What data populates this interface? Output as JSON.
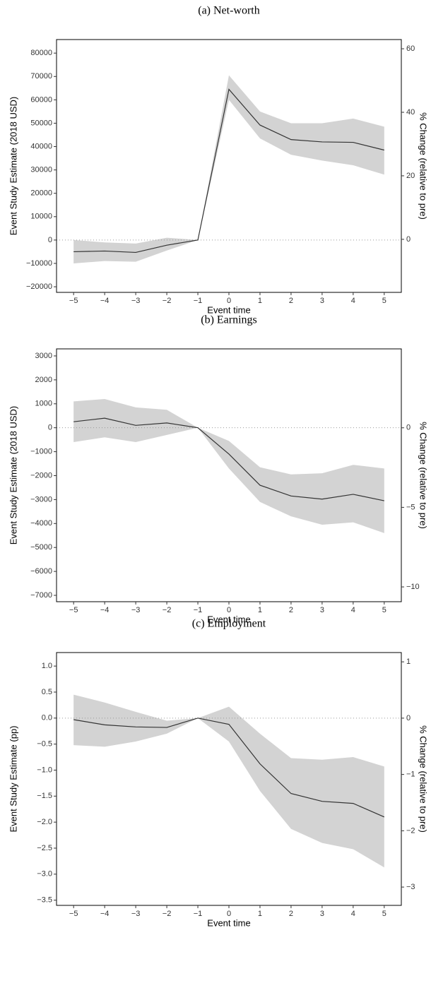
{
  "chart_data": [
    {
      "type": "line",
      "title": "(a) Net-worth",
      "xlabel": "Event time",
      "ylabel": "Event Study Estimate (2018 USD)",
      "y2label": "% Change (relative to pre)",
      "x": [
        -5,
        -4,
        -3,
        -2,
        -1,
        0,
        1,
        2,
        3,
        4,
        5
      ],
      "values": [
        -5000,
        -4700,
        -5300,
        -2200,
        0,
        64500,
        49200,
        43000,
        42000,
        41800,
        38500
      ],
      "lower": [
        -10000,
        -9000,
        -9300,
        -4500,
        0,
        60000,
        43500,
        36500,
        34000,
        32000,
        28000
      ],
      "upper": [
        0,
        -1000,
        -1500,
        1000,
        0,
        70500,
        55000,
        50000,
        50000,
        52000,
        48500
      ],
      "color": "#333333",
      "band_color": "#d3d3d3",
      "hline": 0,
      "xlim": [
        -5.55,
        5.55
      ],
      "ylim": [
        -22400,
        85800
      ],
      "y2lim": [
        -16.7,
        62.9
      ],
      "xticks": [
        {
          "value": -5,
          "label": "−5"
        },
        {
          "value": -4,
          "label": "−4"
        },
        {
          "value": -3,
          "label": "−3"
        },
        {
          "value": -2,
          "label": "−2"
        },
        {
          "value": -1,
          "label": "−1"
        },
        0,
        1,
        2,
        3,
        4,
        5
      ],
      "yticks": [
        {
          "value": -20000,
          "label": "−20000"
        },
        {
          "value": -10000,
          "label": "−10000"
        },
        0,
        10000,
        20000,
        30000,
        40000,
        50000,
        60000,
        70000,
        80000
      ],
      "y2ticks": [
        0,
        20,
        40,
        60
      ]
    },
    {
      "type": "line",
      "title": "(b) Earnings",
      "xlabel": "Event time",
      "ylabel": "Event Study Estimate (2018 USD)",
      "y2label": "% Change (relative to pre)",
      "x": [
        -5,
        -4,
        -3,
        -2,
        -1,
        0,
        1,
        2,
        3,
        4,
        5
      ],
      "values": [
        250,
        400,
        100,
        200,
        0,
        -1100,
        -2400,
        -2850,
        -2980,
        -2780,
        -3050
      ],
      "lower": [
        -600,
        -400,
        -600,
        -300,
        0,
        -1700,
        -3100,
        -3700,
        -4050,
        -3950,
        -4400
      ],
      "upper": [
        1100,
        1200,
        850,
        750,
        0,
        -550,
        -1650,
        -1950,
        -1900,
        -1550,
        -1700
      ],
      "color": "#333333",
      "band_color": "#d3d3d3",
      "hline": 0,
      "xlim": [
        -5.55,
        5.55
      ],
      "ylim": [
        -7265,
        3294
      ],
      "y2lim": [
        -10.93,
        4.96
      ],
      "xticks": [
        {
          "value": -5,
          "label": "−5"
        },
        {
          "value": -4,
          "label": "−4"
        },
        {
          "value": -3,
          "label": "−3"
        },
        {
          "value": -2,
          "label": "−2"
        },
        {
          "value": -1,
          "label": "−1"
        },
        0,
        1,
        2,
        3,
        4,
        5
      ],
      "yticks": [
        {
          "value": -7000,
          "label": "−7000"
        },
        {
          "value": -6000,
          "label": "−6000"
        },
        {
          "value": -5000,
          "label": "−5000"
        },
        {
          "value": -4000,
          "label": "−4000"
        },
        {
          "value": -3000,
          "label": "−3000"
        },
        {
          "value": -2000,
          "label": "−2000"
        },
        {
          "value": -1000,
          "label": "−1000"
        },
        0,
        1000,
        2000,
        3000
      ],
      "y2ticks": [
        {
          "value": -10,
          "label": "−10"
        },
        {
          "value": -5,
          "label": "−5"
        },
        0
      ]
    },
    {
      "type": "line",
      "title": "(c) Employment",
      "xlabel": "Event time",
      "ylabel": "Event Study Estimate (pp)",
      "y2label": "% Change (relative to pre)",
      "x": [
        -5,
        -4,
        -3,
        -2,
        -1,
        0,
        1,
        2,
        3,
        4,
        5
      ],
      "values": [
        -0.03,
        -0.13,
        -0.17,
        -0.18,
        0,
        -0.12,
        -0.88,
        -1.45,
        -1.6,
        -1.64,
        -1.9
      ],
      "lower": [
        -0.52,
        -0.55,
        -0.45,
        -0.3,
        0,
        -0.45,
        -1.4,
        -2.13,
        -2.4,
        -2.52,
        -2.87
      ],
      "upper": [
        0.45,
        0.3,
        0.12,
        -0.05,
        0,
        0.22,
        -0.3,
        -0.77,
        -0.8,
        -0.75,
        -0.93
      ],
      "color": "#333333",
      "band_color": "#d3d3d3",
      "hline": 0,
      "xlim": [
        -5.55,
        5.55
      ],
      "ylim": [
        -3.6,
        1.26
      ],
      "y2lim": [
        -3.325,
        1.165
      ],
      "xticks": [
        {
          "value": -5,
          "label": "−5"
        },
        {
          "value": -4,
          "label": "−4"
        },
        {
          "value": -3,
          "label": "−3"
        },
        {
          "value": -2,
          "label": "−2"
        },
        {
          "value": -1,
          "label": "−1"
        },
        0,
        1,
        2,
        3,
        4,
        5
      ],
      "yticks": [
        {
          "value": -3.5,
          "label": "−3.5"
        },
        {
          "value": -3,
          "label": "−3.0"
        },
        {
          "value": -2.5,
          "label": "−2.5"
        },
        {
          "value": -2,
          "label": "−2.0"
        },
        {
          "value": -1.5,
          "label": "−1.5"
        },
        {
          "value": -1,
          "label": "−1.0"
        },
        {
          "value": -0.5,
          "label": "−0.5"
        },
        {
          "value": 0,
          "label": "0.0"
        },
        0.5,
        {
          "value": 1,
          "label": "1.0"
        }
      ],
      "y2ticks": [
        {
          "value": -3,
          "label": "−3"
        },
        {
          "value": -2,
          "label": "−2"
        },
        {
          "value": -1,
          "label": "−1"
        },
        0,
        1
      ]
    }
  ]
}
